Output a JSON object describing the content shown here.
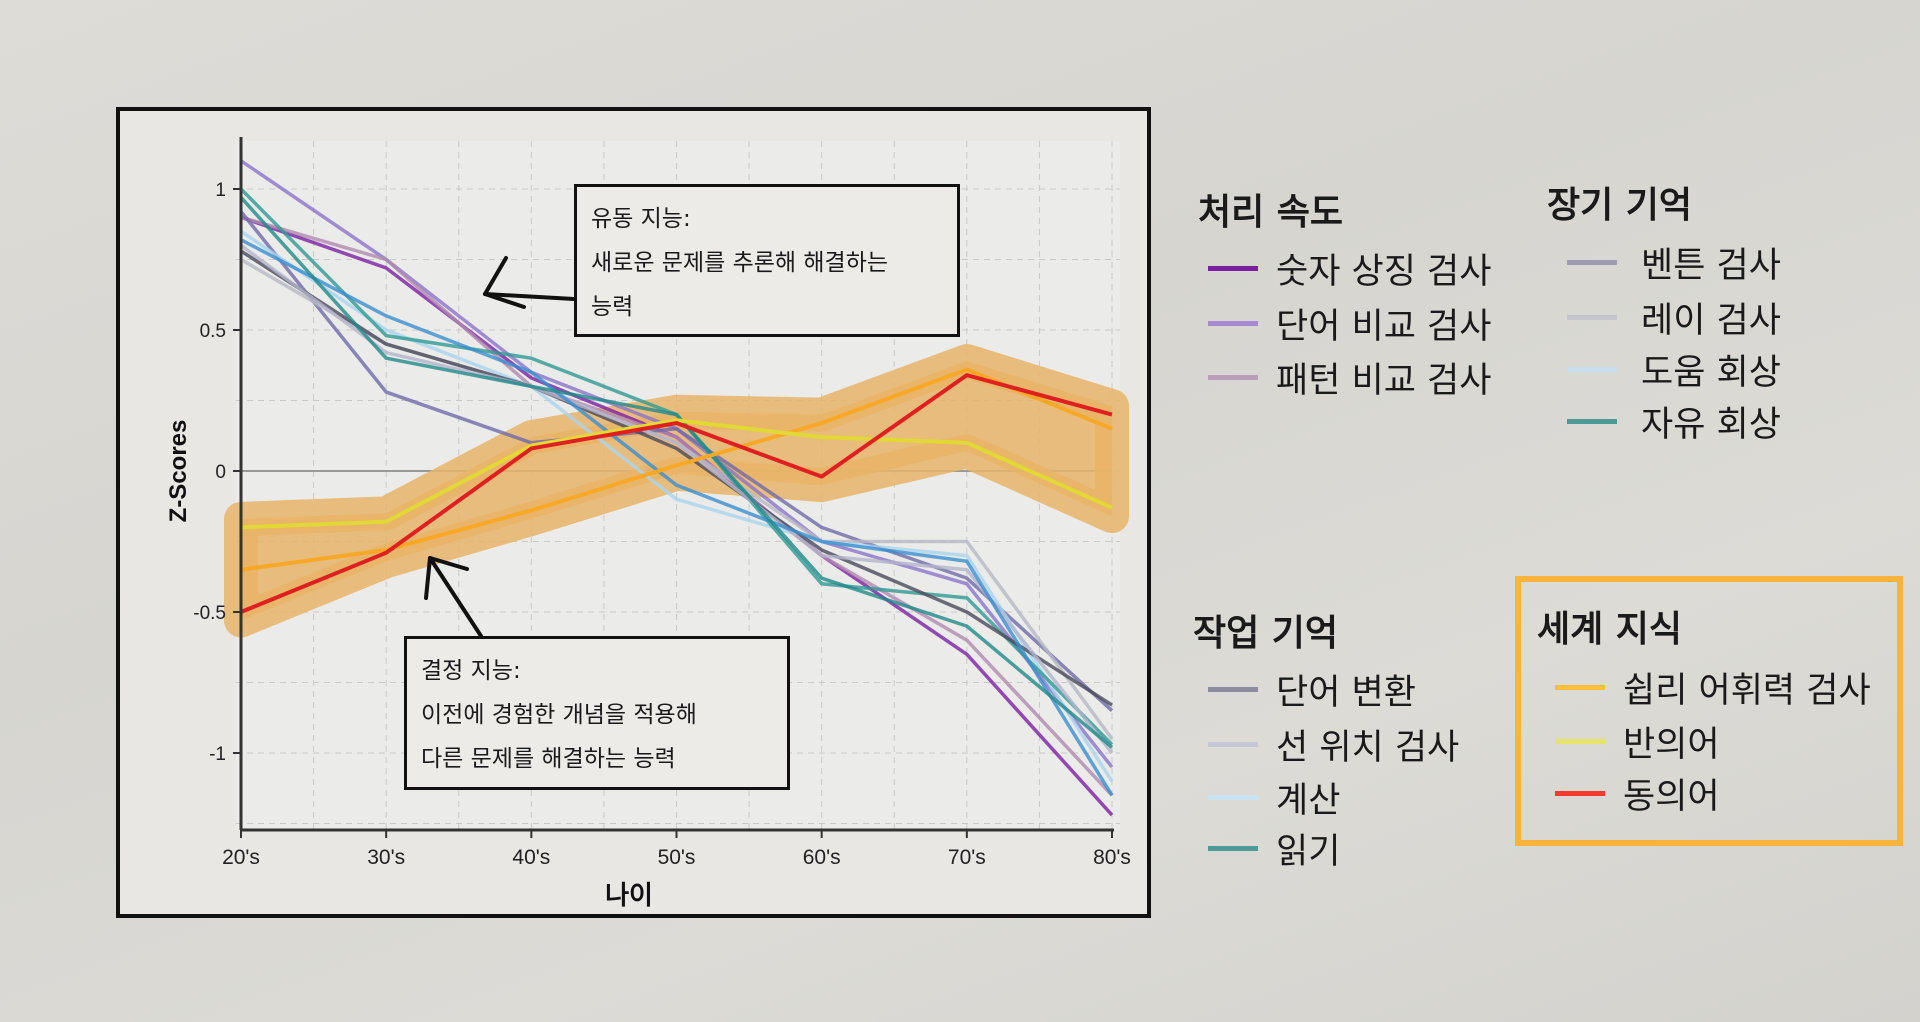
{
  "chart_data": {
    "type": "line",
    "categories": [
      "20's",
      "30's",
      "40's",
      "50's",
      "60's",
      "70's",
      "80's"
    ],
    "xlabel": "나이",
    "ylabel": "Z-Scores",
    "ylim": [
      -1.27,
      1.17
    ],
    "yticks": [
      1,
      0.5,
      0,
      -0.5,
      -1
    ],
    "ytick_labels": [
      "1",
      "0.5",
      "0",
      "-0.5",
      "-1"
    ],
    "grid": true,
    "series": [
      {
        "name": "숫자 상징 검사",
        "group": "처리 속도",
        "color": "#7b1fa2",
        "values": [
          0.9,
          0.72,
          0.33,
          0.12,
          -0.3,
          -0.65,
          -1.22
        ]
      },
      {
        "name": "단어 비교 검사",
        "group": "처리 속도",
        "color": "#8a74c8",
        "values": [
          1.1,
          0.75,
          0.35,
          0.15,
          -0.25,
          -0.4,
          -1.05
        ]
      },
      {
        "name": "패턴 비교 검사",
        "group": "처리 속도",
        "color": "#b08ab0",
        "values": [
          0.9,
          0.75,
          0.3,
          0.12,
          -0.3,
          -0.6,
          -1.15
        ]
      },
      {
        "name": "벤튼 검사",
        "group": "장기 기억",
        "color": "#6f6aa8",
        "values": [
          0.92,
          0.28,
          0.1,
          0.15,
          -0.2,
          -0.38,
          -0.85
        ]
      },
      {
        "name": "레이 검사",
        "group": "장기 기억",
        "color": "#b8b8c4",
        "values": [
          0.75,
          0.45,
          0.3,
          0.1,
          -0.25,
          -0.25,
          -0.95
        ]
      },
      {
        "name": "도움 회상",
        "group": "장기 기억",
        "color": "#a9d4ee",
        "values": [
          0.85,
          0.5,
          0.3,
          -0.1,
          -0.25,
          -0.3,
          -1.1
        ]
      },
      {
        "name": "자유 회상",
        "group": "장기 기억",
        "color": "#2f9a94",
        "values": [
          1.0,
          0.48,
          0.4,
          0.2,
          -0.4,
          -0.45,
          -0.97
        ]
      },
      {
        "name": "단어 변환",
        "group": "작업 기억",
        "color": "#4a4a5c",
        "values": [
          0.78,
          0.45,
          0.3,
          0.08,
          -0.28,
          -0.5,
          -0.83
        ]
      },
      {
        "name": "선 위치 검사",
        "group": "작업 기억",
        "color": "#b4b4cc",
        "values": [
          0.8,
          0.42,
          0.3,
          0.1,
          -0.3,
          -0.35,
          -1.0
        ]
      },
      {
        "name": "계산",
        "group": "작업 기억",
        "color": "#3a8ed0",
        "values": [
          0.82,
          0.55,
          0.35,
          -0.05,
          -0.25,
          -0.32,
          -1.15
        ]
      },
      {
        "name": "읽기",
        "group": "작업 기억",
        "color": "#1f8a8a",
        "values": [
          0.97,
          0.4,
          0.3,
          0.2,
          -0.38,
          -0.55,
          -0.98
        ]
      },
      {
        "name": "쉽리 어휘력 검사",
        "group": "세계 지식",
        "color": "#f9a825",
        "values": [
          -0.35,
          -0.28,
          -0.14,
          0.02,
          0.17,
          0.36,
          0.15
        ]
      },
      {
        "name": "반의어",
        "group": "세계 지식",
        "color": "#e2d836",
        "values": [
          -0.2,
          -0.18,
          0.09,
          0.18,
          0.12,
          0.1,
          -0.13
        ]
      },
      {
        "name": "동의어",
        "group": "세계 지식",
        "color": "#e02020",
        "values": [
          -0.5,
          -0.29,
          0.08,
          0.17,
          -0.02,
          0.34,
          0.2
        ]
      }
    ],
    "highlight_band_color": "#e8b468"
  },
  "annotations": {
    "fluid": {
      "title": "유동 지능:",
      "line1": "새로운 문제를 추론해 해결하는",
      "line2": "능력"
    },
    "crystallized": {
      "title": "결정 지능:",
      "line1": "이전에 경험한 개념을 적용해",
      "line2": "다른 문제를 해결하는 능력"
    }
  },
  "legend": {
    "processing_speed": {
      "title": "처리 속도",
      "items": [
        {
          "label": "숫자 상징 검사",
          "color": "#7b1fa2"
        },
        {
          "label": "단어 비교 검사",
          "color": "#a68ad6"
        },
        {
          "label": "패턴 비교 검사",
          "color": "#b9a0b8"
        }
      ]
    },
    "long_term_memory": {
      "title": "장기 기억",
      "items": [
        {
          "label": "벤튼 검사",
          "color": "#9d9bb0"
        },
        {
          "label": "레이 검사",
          "color": "#c5c5cf"
        },
        {
          "label": "도움 회상",
          "color": "#c8def0"
        },
        {
          "label": "자유 회상",
          "color": "#4b9a96"
        }
      ]
    },
    "working_memory": {
      "title": "작업 기억",
      "items": [
        {
          "label": "단어 변환",
          "color": "#8d8ba0"
        },
        {
          "label": "선 위치 검사",
          "color": "#c7c6d4"
        },
        {
          "label": "계산",
          "color": "#c9e3f4"
        },
        {
          "label": "읽기",
          "color": "#4b9a96"
        }
      ]
    },
    "world_knowledge": {
      "title": "세계 지식",
      "box_color": "#f6b43c",
      "items": [
        {
          "label": "쉽리 어휘력 검사",
          "color": "#fbbf3a"
        },
        {
          "label": "반의어",
          "color": "#e6e46a"
        },
        {
          "label": "동의어",
          "color": "#f53a30"
        }
      ]
    }
  }
}
